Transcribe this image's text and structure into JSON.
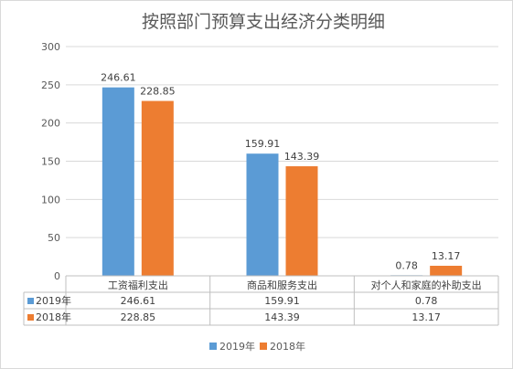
{
  "chart_data": {
    "type": "bar",
    "title": "按照部门预算支出经济分类明细",
    "categories": [
      "工资福利支出",
      "商品和服务支出",
      "对个人和家庭的补助支出"
    ],
    "series": [
      {
        "name": "2019年",
        "values": [
          246.61,
          159.91,
          0.78
        ],
        "value_labels": [
          "246.61",
          "159.91",
          "0.78"
        ],
        "color": "#5b9bd5"
      },
      {
        "name": "2018年",
        "values": [
          228.85,
          143.39,
          13.17
        ],
        "value_labels": [
          "228.85",
          "143.39",
          "13.17"
        ],
        "color": "#ed7d31"
      }
    ],
    "ylim": [
      0,
      300
    ],
    "yticks": [
      "0",
      "50",
      "100",
      "150",
      "200",
      "250",
      "300"
    ],
    "grid": true,
    "legend": "bottom",
    "data_table": true
  }
}
